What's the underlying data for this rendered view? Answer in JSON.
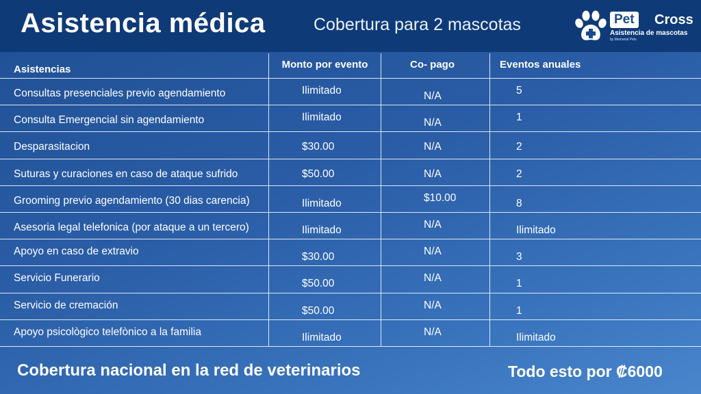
{
  "header": {
    "title": "Asistencia médica",
    "subtitle": "Cobertura para 2 mascotas"
  },
  "logo": {
    "pet": "Pet",
    "cross": "Cross",
    "tagline": "Asistencia de mascotas",
    "small": "by Memorial Pets"
  },
  "table": {
    "columns": [
      "Asistencias",
      "Monto por evento",
      "Co- pago",
      "Eventos anuales"
    ],
    "rows": [
      [
        "Consultas presenciales previo agendamiento",
        "Ilimitado",
        "N/A",
        "5"
      ],
      [
        "Consulta Emergencial sin agendamiento",
        "Ilimitado",
        "N/A",
        "1"
      ],
      [
        "Desparasitacion",
        "$30.00",
        "N/A",
        "2"
      ],
      [
        "Suturas y curaciones en caso de ataque sufrido",
        "$50.00",
        "N/A",
        "2"
      ],
      [
        "Grooming previo agendamiento (30 dias carencia)",
        "Ilimitado",
        "$10.00",
        "8"
      ],
      [
        "Asesoria legal telefonica (por ataque a un tercero)",
        "Ilimitado",
        "N/A",
        "Ilimitado"
      ],
      [
        "Apoyo en caso de extravio",
        "$30.00",
        "N/A",
        "3"
      ],
      [
        "Servicio Funerario",
        "$50.00",
        "N/A",
        "1"
      ],
      [
        "Servicio de cremación",
        "$50.00",
        "N/A",
        "1"
      ],
      [
        "Apoyo psicològico telefònico a la familia",
        "Ilimitado",
        "N/A",
        "Ilimitado"
      ]
    ]
  },
  "footer": {
    "left": "Cobertura nacional en la red de veterinarios",
    "right": "Todo esto por ₡6000"
  },
  "colors": {
    "header_bg": "#0f3a78",
    "bg_start": "#1f4f93",
    "bg_end": "#4a86cc",
    "text": "#ffffff"
  }
}
